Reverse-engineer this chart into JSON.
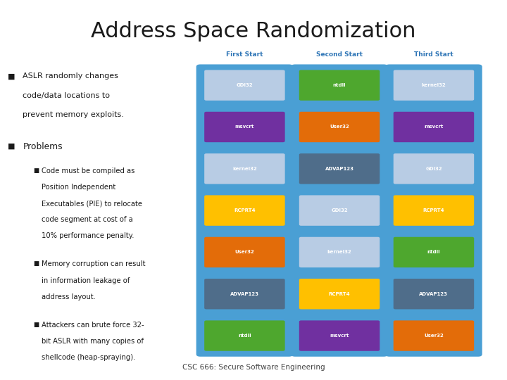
{
  "title": "Address Space Randomization",
  "title_fontsize": 22,
  "title_color": "#1a1a1a",
  "header_bg": "#c8d4eb",
  "slide_bg": "#ffffff",
  "footer_text": "CSC 666: Secure Software Engineering",
  "col_titles": [
    "First Start",
    "Second Start",
    "Third Start"
  ],
  "col_title_color": "#2e75b6",
  "col_bg": "#4a9fd4",
  "columns": [
    [
      {
        "label": "GDI32",
        "color": "#b8cce4"
      },
      {
        "label": "msvcrt",
        "color": "#7030a0"
      },
      {
        "label": "kernel32",
        "color": "#b8cce4"
      },
      {
        "label": "RCPRT4",
        "color": "#ffc000"
      },
      {
        "label": "User32",
        "color": "#e36c09"
      },
      {
        "label": "ADVAP123",
        "color": "#4f6d8a"
      },
      {
        "label": "ntdll",
        "color": "#4ea72e"
      }
    ],
    [
      {
        "label": "ntdll",
        "color": "#4ea72e"
      },
      {
        "label": "User32",
        "color": "#e36c09"
      },
      {
        "label": "ADVAP123",
        "color": "#4f6d8a"
      },
      {
        "label": "GDI32",
        "color": "#b8cce4"
      },
      {
        "label": "kernel32",
        "color": "#b8cce4"
      },
      {
        "label": "RCPRT4",
        "color": "#ffc000"
      },
      {
        "label": "msvcrt",
        "color": "#7030a0"
      }
    ],
    [
      {
        "label": "kernel32",
        "color": "#b8cce4"
      },
      {
        "label": "msvcrt",
        "color": "#7030a0"
      },
      {
        "label": "GDI32",
        "color": "#b8cce4"
      },
      {
        "label": "RCPRT4",
        "color": "#ffc000"
      },
      {
        "label": "ntdll",
        "color": "#4ea72e"
      },
      {
        "label": "ADVAP123",
        "color": "#4f6d8a"
      },
      {
        "label": "User32",
        "color": "#e36c09"
      }
    ]
  ],
  "bullet1_lines": [
    "ASLR randomly changes",
    "code/data locations to",
    "prevent memory exploits."
  ],
  "bullet2": "Problems",
  "sub1_lines": [
    "Code must be compiled as",
    "Position Independent",
    "Executables (PIE) to relocate",
    "code segment at cost of a",
    "10% performance penalty."
  ],
  "sub2_lines": [
    "Memory corruption can result",
    "in information leakage of",
    "address layout."
  ],
  "sub3_lines": [
    "Attackers can brute force 32-",
    "bit ASLR with many copies of",
    "shellcode (heap-spraying)."
  ]
}
